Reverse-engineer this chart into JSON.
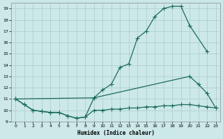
{
  "xlabel": "Humidex (Indice chaleur)",
  "bg_color": "#cce8e8",
  "grid_color": "#b0d0d0",
  "line_color": "#1a6b5a",
  "xlim": [
    -0.5,
    23.5
  ],
  "ylim": [
    9.0,
    19.5
  ],
  "yticks": [
    9,
    10,
    11,
    12,
    13,
    14,
    15,
    16,
    17,
    18,
    19
  ],
  "xticks": [
    0,
    1,
    2,
    3,
    4,
    5,
    6,
    7,
    8,
    9,
    10,
    11,
    12,
    13,
    14,
    15,
    16,
    17,
    18,
    19,
    20,
    21,
    22,
    23
  ],
  "line1_x": [
    0,
    1,
    2,
    3,
    4,
    5,
    6,
    7,
    8,
    9,
    10,
    11,
    12,
    13,
    14,
    15,
    16,
    17,
    18,
    19,
    20,
    22
  ],
  "line1_y": [
    11.0,
    10.5,
    10.0,
    9.9,
    9.8,
    9.8,
    9.5,
    9.3,
    9.4,
    11.1,
    11.8,
    12.3,
    13.8,
    14.1,
    16.4,
    17.0,
    18.3,
    19.0,
    19.2,
    19.2,
    17.5,
    15.2
  ],
  "line2_x": [
    0,
    9,
    20,
    21,
    22,
    23
  ],
  "line2_y": [
    11.0,
    11.1,
    13.0,
    12.3,
    11.5,
    10.2
  ],
  "line3_x": [
    0,
    1,
    2,
    3,
    4,
    5,
    6,
    7,
    8,
    9,
    10,
    11,
    12,
    13,
    14,
    15,
    16,
    17,
    18,
    19,
    20,
    21,
    22,
    23
  ],
  "line3_y": [
    11.0,
    10.5,
    10.0,
    9.9,
    9.8,
    9.8,
    9.5,
    9.3,
    9.4,
    10.0,
    10.0,
    10.1,
    10.1,
    10.2,
    10.2,
    10.3,
    10.3,
    10.4,
    10.4,
    10.5,
    10.5,
    10.4,
    10.3,
    10.2
  ],
  "marker_size": 2.5
}
